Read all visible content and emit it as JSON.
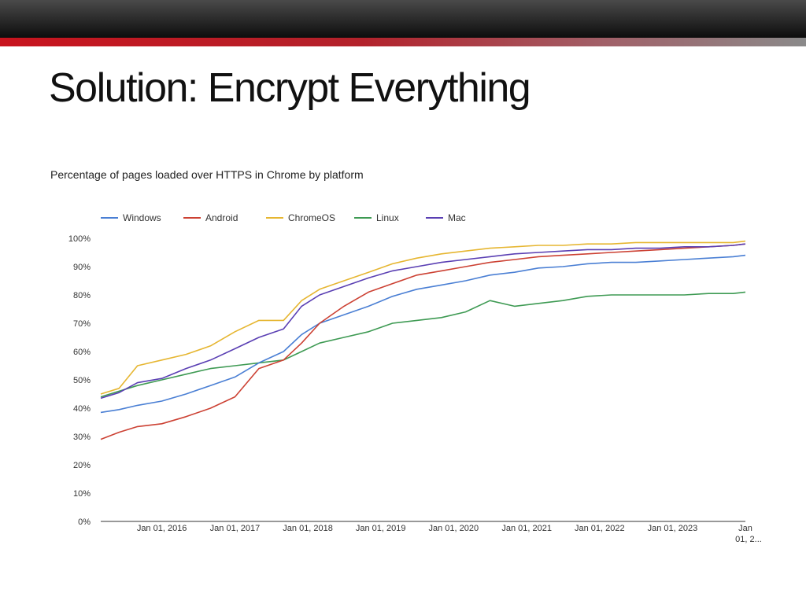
{
  "slide": {
    "title": "Solution: Encrypt Everything",
    "brand_colors": {
      "top_bar": "#1a1a1a",
      "accent": "#c8141e"
    }
  },
  "chart_data": {
    "type": "line",
    "title": "Percentage of pages loaded over HTTPS in Chrome by platform",
    "xlabel": "",
    "ylabel": "",
    "x_range": [
      "2015-03-01",
      "2024-01-01"
    ],
    "ylim": [
      0,
      100
    ],
    "y_ticks": [
      0,
      10,
      20,
      30,
      40,
      50,
      60,
      70,
      80,
      90,
      100
    ],
    "y_tick_labels": [
      "0%",
      "10%",
      "20%",
      "30%",
      "40%",
      "50%",
      "60%",
      "70%",
      "80%",
      "90%",
      "100%"
    ],
    "x_ticks": [
      {
        "date": "2016-01-01",
        "label": "Jan 01, 2016"
      },
      {
        "date": "2017-01-01",
        "label": "Jan 01, 2017"
      },
      {
        "date": "2018-01-01",
        "label": "Jan 01, 2018"
      },
      {
        "date": "2019-01-01",
        "label": "Jan 01, 2019"
      },
      {
        "date": "2020-01-01",
        "label": "Jan 01, 2020"
      },
      {
        "date": "2021-01-01",
        "label": "Jan 01, 2021"
      },
      {
        "date": "2022-01-01",
        "label": "Jan 01, 2022"
      },
      {
        "date": "2023-01-01",
        "label": "Jan 01, 2023"
      },
      {
        "date": "2024-01-01",
        "label": "Jan 01, 2...",
        "line1": "Jan",
        "line2": "01, 2..."
      }
    ],
    "legend_position": "top-left",
    "grid": false,
    "series": [
      {
        "name": "Windows",
        "color": "#4a7fd4",
        "x": [
          "2015-03-01",
          "2015-06-01",
          "2015-09-01",
          "2016-01-01",
          "2016-05-01",
          "2016-09-01",
          "2017-01-01",
          "2017-05-01",
          "2017-09-01",
          "2017-12-01",
          "2018-03-01",
          "2018-07-01",
          "2018-11-01",
          "2019-03-01",
          "2019-07-01",
          "2019-11-01",
          "2020-03-01",
          "2020-07-01",
          "2020-11-01",
          "2021-03-01",
          "2021-07-01",
          "2021-11-01",
          "2022-03-01",
          "2022-07-01",
          "2022-11-01",
          "2023-03-01",
          "2023-07-01",
          "2023-11-01",
          "2024-01-01"
        ],
        "values": [
          38.5,
          39.5,
          41,
          42.5,
          45,
          48,
          51,
          56,
          60,
          66,
          70,
          73,
          76,
          79.5,
          82,
          83.5,
          85,
          87,
          88,
          89.5,
          90,
          91,
          91.5,
          91.5,
          92,
          92.5,
          93,
          93.5,
          94
        ]
      },
      {
        "name": "Android",
        "color": "#cc4133",
        "x": [
          "2015-03-01",
          "2015-06-01",
          "2015-09-01",
          "2016-01-01",
          "2016-05-01",
          "2016-09-01",
          "2017-01-01",
          "2017-05-01",
          "2017-09-01",
          "2017-12-01",
          "2018-03-01",
          "2018-07-01",
          "2018-11-01",
          "2019-03-01",
          "2019-07-01",
          "2019-11-01",
          "2020-03-01",
          "2020-07-01",
          "2020-11-01",
          "2021-03-01",
          "2021-07-01",
          "2021-11-01",
          "2022-03-01",
          "2022-07-01",
          "2022-11-01",
          "2023-03-01",
          "2023-07-01",
          "2023-11-01",
          "2024-01-01"
        ],
        "values": [
          29,
          31.5,
          33.5,
          34.5,
          37,
          40,
          44,
          54,
          57,
          63,
          70,
          76,
          81,
          84,
          87,
          88.5,
          90,
          91.5,
          92.5,
          93.5,
          94,
          94.5,
          95,
          95.5,
          96,
          96.5,
          97,
          97.5,
          98
        ]
      },
      {
        "name": "ChromeOS",
        "color": "#e6b631",
        "x": [
          "2015-03-01",
          "2015-06-01",
          "2015-09-01",
          "2016-01-01",
          "2016-05-01",
          "2016-09-01",
          "2017-01-01",
          "2017-05-01",
          "2017-09-01",
          "2017-12-01",
          "2018-03-01",
          "2018-07-01",
          "2018-11-01",
          "2019-03-01",
          "2019-07-01",
          "2019-11-01",
          "2020-03-01",
          "2020-07-01",
          "2020-11-01",
          "2021-03-01",
          "2021-07-01",
          "2021-11-01",
          "2022-03-01",
          "2022-07-01",
          "2022-11-01",
          "2023-03-01",
          "2023-07-01",
          "2023-11-01",
          "2024-01-01"
        ],
        "values": [
          45,
          47,
          55,
          57,
          59,
          62,
          67,
          71,
          71,
          78,
          82,
          85,
          88,
          91,
          93,
          94.5,
          95.5,
          96.5,
          97,
          97.5,
          97.5,
          98,
          98,
          98.5,
          98.5,
          98.5,
          98.5,
          98.5,
          99
        ]
      },
      {
        "name": "Linux",
        "color": "#3e9a53",
        "x": [
          "2015-03-01",
          "2015-06-01",
          "2015-09-01",
          "2016-01-01",
          "2016-05-01",
          "2016-09-01",
          "2017-01-01",
          "2017-05-01",
          "2017-09-01",
          "2017-12-01",
          "2018-03-01",
          "2018-07-01",
          "2018-11-01",
          "2019-03-01",
          "2019-07-01",
          "2019-11-01",
          "2020-03-01",
          "2020-07-01",
          "2020-11-01",
          "2021-03-01",
          "2021-07-01",
          "2021-11-01",
          "2022-03-01",
          "2022-07-01",
          "2022-11-01",
          "2023-03-01",
          "2023-07-01",
          "2023-11-01",
          "2024-01-01"
        ],
        "values": [
          44,
          46,
          48,
          50,
          52,
          54,
          55,
          56,
          57,
          60,
          63,
          65,
          67,
          70,
          71,
          72,
          74,
          78,
          76,
          77,
          78,
          79.5,
          80,
          80,
          80,
          80,
          80.5,
          80.5,
          81
        ]
      },
      {
        "name": "Mac",
        "color": "#5a3fb3",
        "x": [
          "2015-03-01",
          "2015-06-01",
          "2015-09-01",
          "2016-01-01",
          "2016-05-01",
          "2016-09-01",
          "2017-01-01",
          "2017-05-01",
          "2017-09-01",
          "2017-12-01",
          "2018-03-01",
          "2018-07-01",
          "2018-11-01",
          "2019-03-01",
          "2019-07-01",
          "2019-11-01",
          "2020-03-01",
          "2020-07-01",
          "2020-11-01",
          "2021-03-01",
          "2021-07-01",
          "2021-11-01",
          "2022-03-01",
          "2022-07-01",
          "2022-11-01",
          "2023-03-01",
          "2023-07-01",
          "2023-11-01",
          "2024-01-01"
        ],
        "values": [
          43.5,
          45.5,
          49,
          50.5,
          54,
          57,
          61,
          65,
          68,
          76,
          80,
          83,
          86,
          88.5,
          90,
          91.5,
          92.5,
          93.5,
          94.5,
          95,
          95.5,
          96,
          96,
          96.5,
          96.5,
          97,
          97,
          97.5,
          98
        ]
      }
    ]
  }
}
